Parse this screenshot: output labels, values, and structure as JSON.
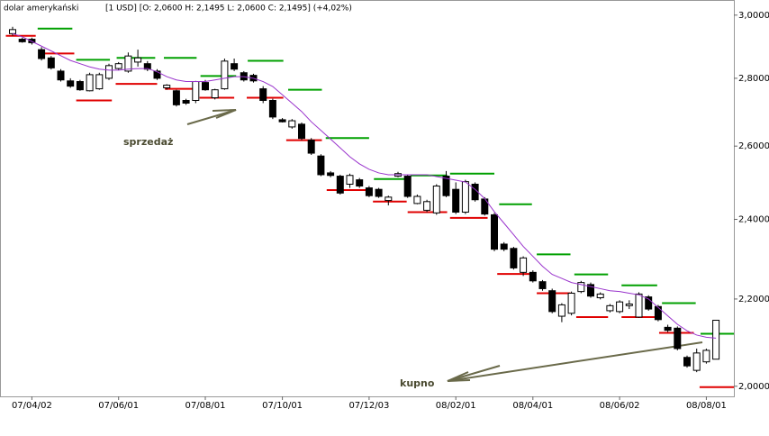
{
  "chart_data": {
    "type": "candlestick",
    "title": "dolar amerykański",
    "subtitle": "[1 USD]  [O: 2,0600   H: 2,1495   L: 2,0600   C: 2,1495]  (+4,02%)",
    "categories": [
      null,
      null,
      "07/04/02",
      null,
      null,
      null,
      null,
      null,
      null,
      null,
      null,
      "07/06/01",
      null,
      null,
      null,
      null,
      null,
      null,
      null,
      null,
      "07/08/01",
      null,
      null,
      null,
      null,
      null,
      null,
      null,
      "07/10/01",
      null,
      null,
      null,
      null,
      null,
      null,
      null,
      null,
      "07/12/03",
      null,
      null,
      null,
      null,
      null,
      null,
      null,
      null,
      "08/02/01",
      null,
      null,
      null,
      null,
      null,
      null,
      null,
      "08/04/01",
      null,
      null,
      null,
      null,
      null,
      null,
      null,
      null,
      "08/06/02",
      null,
      null,
      null,
      null,
      null,
      null,
      null,
      null,
      "08/08/01",
      null
    ],
    "open": [
      2.94,
      2.922,
      2.922,
      2.889,
      2.863,
      2.822,
      2.792,
      2.79,
      2.762,
      2.768,
      2.8,
      2.83,
      2.822,
      2.85,
      2.845,
      2.822,
      2.771,
      2.762,
      2.733,
      2.733,
      2.787,
      2.741,
      2.768,
      2.845,
      2.817,
      2.809,
      2.768,
      2.733,
      2.676,
      2.655,
      2.663,
      2.617,
      2.572,
      2.525,
      2.516,
      2.494,
      2.506,
      2.484,
      2.48,
      2.45,
      2.516,
      2.516,
      2.442,
      2.424,
      2.417,
      2.516,
      2.48,
      2.419,
      2.494,
      2.454,
      2.412,
      2.336,
      2.325,
      2.265,
      2.265,
      2.242,
      2.22,
      2.159,
      2.166,
      2.218,
      2.235,
      2.203,
      2.172,
      2.17,
      2.184,
      2.157,
      2.205,
      2.182,
      2.133,
      2.131,
      2.064,
      2.035,
      2.054,
      2.06
    ],
    "high": [
      2.962,
      2.927,
      2.927,
      2.897,
      2.869,
      2.828,
      2.8,
      2.795,
      2.817,
      2.817,
      2.845,
      2.85,
      2.88,
      2.889,
      2.853,
      2.828,
      2.782,
      2.765,
      2.738,
      2.792,
      2.795,
      2.768,
      2.861,
      2.861,
      2.822,
      2.814,
      2.776,
      2.738,
      2.681,
      2.678,
      2.668,
      2.623,
      2.577,
      2.53,
      2.52,
      2.523,
      2.511,
      2.489,
      2.484,
      2.463,
      2.528,
      2.52,
      2.466,
      2.452,
      2.494,
      2.53,
      2.499,
      2.506,
      2.499,
      2.459,
      2.417,
      2.341,
      2.329,
      2.305,
      2.27,
      2.246,
      2.225,
      2.19,
      2.218,
      2.244,
      2.24,
      2.216,
      2.188,
      2.197,
      2.197,
      2.216,
      2.209,
      2.186,
      2.139,
      2.135,
      2.068,
      2.084,
      2.084,
      2.1495
    ],
    "low": [
      2.933,
      2.911,
      2.905,
      2.855,
      2.827,
      2.79,
      2.771,
      2.762,
      2.76,
      2.765,
      2.795,
      2.825,
      2.817,
      2.836,
      2.822,
      2.795,
      2.765,
      2.715,
      2.72,
      2.725,
      2.762,
      2.736,
      2.765,
      2.822,
      2.79,
      2.787,
      2.725,
      2.678,
      2.668,
      2.65,
      2.617,
      2.575,
      2.516,
      2.513,
      2.466,
      2.484,
      2.484,
      2.459,
      2.457,
      2.437,
      2.513,
      2.457,
      2.44,
      2.419,
      2.412,
      2.459,
      2.414,
      2.414,
      2.447,
      2.41,
      2.318,
      2.318,
      2.272,
      2.256,
      2.24,
      2.22,
      2.166,
      2.145,
      2.161,
      2.214,
      2.203,
      2.199,
      2.168,
      2.166,
      2.176,
      2.155,
      2.172,
      2.147,
      2.122,
      2.08,
      2.041,
      2.031,
      2.05,
      2.06
    ],
    "close": [
      2.953,
      2.914,
      2.911,
      2.861,
      2.832,
      2.795,
      2.776,
      2.765,
      2.811,
      2.811,
      2.839,
      2.845,
      2.869,
      2.863,
      2.828,
      2.8,
      2.779,
      2.72,
      2.725,
      2.79,
      2.765,
      2.765,
      2.853,
      2.828,
      2.795,
      2.792,
      2.733,
      2.684,
      2.67,
      2.673,
      2.622,
      2.58,
      2.52,
      2.518,
      2.47,
      2.518,
      2.489,
      2.463,
      2.461,
      2.459,
      2.523,
      2.461,
      2.461,
      2.447,
      2.489,
      2.463,
      2.419,
      2.501,
      2.452,
      2.414,
      2.323,
      2.323,
      2.276,
      2.301,
      2.244,
      2.225,
      2.17,
      2.186,
      2.214,
      2.24,
      2.207,
      2.212,
      2.184,
      2.193,
      2.188,
      2.212,
      2.176,
      2.151,
      2.126,
      2.084,
      2.045,
      2.074,
      2.08,
      2.1495
    ],
    "ma": {
      "color": "#9933cc",
      "values": [
        2.94,
        2.93,
        2.915,
        2.9,
        2.885,
        2.87,
        2.855,
        2.845,
        2.835,
        2.828,
        2.825,
        2.825,
        2.828,
        2.83,
        2.83,
        2.82,
        2.805,
        2.795,
        2.79,
        2.79,
        2.79,
        2.795,
        2.8,
        2.805,
        2.805,
        2.8,
        2.79,
        2.775,
        2.75,
        2.725,
        2.7,
        2.67,
        2.645,
        2.62,
        2.595,
        2.57,
        2.55,
        2.535,
        2.525,
        2.52,
        2.52,
        2.52,
        2.52,
        2.52,
        2.515,
        2.51,
        2.505,
        2.5,
        2.48,
        2.455,
        2.42,
        2.39,
        2.36,
        2.33,
        2.305,
        2.28,
        2.26,
        2.25,
        2.24,
        2.235,
        2.23,
        2.225,
        2.22,
        2.218,
        2.214,
        2.21,
        2.2,
        2.18,
        2.16,
        2.14,
        2.125,
        2.115,
        2.11,
        2.108
      ]
    },
    "levels": [
      {
        "color": "#00a000",
        "segments": [
          {
            "from": 2.6,
            "to": 6.2,
            "value": 2.956
          },
          {
            "from": 6.6,
            "to": 10.1,
            "value": 2.857
          },
          {
            "from": 10.8,
            "to": 14.8,
            "value": 2.863
          },
          {
            "from": 15.7,
            "to": 19.1,
            "value": 2.863
          },
          {
            "from": 19.5,
            "to": 23.2,
            "value": 2.807
          },
          {
            "from": 24.4,
            "to": 28.1,
            "value": 2.854
          },
          {
            "from": 28.6,
            "to": 32.1,
            "value": 2.765
          },
          {
            "from": 32.5,
            "to": 37,
            "value": 2.623
          },
          {
            "from": 37.5,
            "to": 40.9,
            "value": 2.508
          },
          {
            "from": 41.3,
            "to": 45.1,
            "value": 2.518
          },
          {
            "from": 45.4,
            "to": 50,
            "value": 2.523
          },
          {
            "from": 50.5,
            "to": 53.9,
            "value": 2.44
          },
          {
            "from": 54.4,
            "to": 57.9,
            "value": 2.31
          },
          {
            "from": 58.3,
            "to": 61.8,
            "value": 2.26
          },
          {
            "from": 63.2,
            "to": 66.9,
            "value": 2.233
          },
          {
            "from": 67.4,
            "to": 70.9,
            "value": 2.19
          },
          {
            "from": 71.4,
            "to": 74.9,
            "value": 2.118
          }
        ]
      },
      {
        "color": "#e00000",
        "segments": [
          {
            "from": -0.7,
            "to": 2.4,
            "value": 2.933
          },
          {
            "from": 3.1,
            "to": 6.4,
            "value": 2.877
          },
          {
            "from": 6.6,
            "to": 10.3,
            "value": 2.733
          },
          {
            "from": 10.7,
            "to": 15,
            "value": 2.783
          },
          {
            "from": 15.8,
            "to": 19.3,
            "value": 2.768
          },
          {
            "from": 19.4,
            "to": 23,
            "value": 2.741
          },
          {
            "from": 24.3,
            "to": 28.1,
            "value": 2.741
          },
          {
            "from": 28.4,
            "to": 32.1,
            "value": 2.617
          },
          {
            "from": 32.6,
            "to": 37,
            "value": 2.478
          },
          {
            "from": 37.4,
            "to": 40.9,
            "value": 2.447
          },
          {
            "from": 41,
            "to": 45.1,
            "value": 2.419
          },
          {
            "from": 45.4,
            "to": 49.3,
            "value": 2.404
          },
          {
            "from": 50.3,
            "to": 53.8,
            "value": 2.261
          },
          {
            "from": 54.4,
            "to": 57.9,
            "value": 2.214
          },
          {
            "from": 58.5,
            "to": 61.8,
            "value": 2.157
          },
          {
            "from": 63.2,
            "to": 66.7,
            "value": 2.157
          },
          {
            "from": 67.1,
            "to": 70.7,
            "value": 2.12
          },
          {
            "from": 71.3,
            "to": 74.9,
            "value": 1.998
          }
        ]
      }
    ],
    "ylim": [
      1.978,
      3.05
    ],
    "log_scale": true,
    "yticks": [
      {
        "value": 2,
        "label": "2,0000"
      },
      {
        "value": 2.2,
        "label": "2,2000"
      },
      {
        "value": 2.4,
        "label": "2,4000"
      },
      {
        "value": 2.6,
        "label": "2,6000"
      },
      {
        "value": 2.8,
        "label": "2,8000"
      },
      {
        "value": 3,
        "label": "3,0000"
      }
    ],
    "annotations": [
      "sprzedaż",
      "kupno"
    ]
  }
}
